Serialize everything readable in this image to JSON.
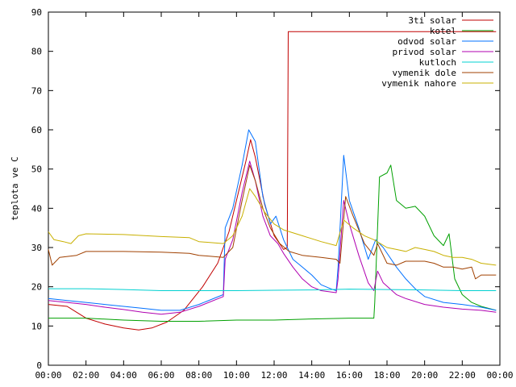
{
  "chart_data": {
    "type": "line",
    "title": "",
    "xlabel": "",
    "ylabel": "teplota ve C",
    "xlim": [
      0,
      24
    ],
    "ylim": [
      0,
      90
    ],
    "yticks": [
      0,
      10,
      20,
      30,
      40,
      50,
      60,
      70,
      80,
      90
    ],
    "xticks": [
      0,
      2,
      4,
      6,
      8,
      10,
      12,
      14,
      16,
      18,
      20,
      22,
      24
    ],
    "xtick_labels": [
      "00:00",
      "02:00",
      "04:00",
      "06:00",
      "08:00",
      "10:00",
      "12:00",
      "14:00",
      "16:00",
      "18:00",
      "20:00",
      "22:00",
      "00:00"
    ],
    "grid": false,
    "legend_position": "top-right",
    "series": [
      {
        "name": "3ti solar",
        "color": "#c00000",
        "points": [
          [
            0,
            15.5
          ],
          [
            1,
            15
          ],
          [
            2,
            12
          ],
          [
            3,
            10.5
          ],
          [
            4,
            9.5
          ],
          [
            4.8,
            9
          ],
          [
            5.5,
            9.5
          ],
          [
            6.3,
            11
          ],
          [
            7.2,
            14
          ],
          [
            8.2,
            20
          ],
          [
            9.0,
            26
          ],
          [
            9.3,
            30
          ],
          [
            9.6,
            34
          ],
          [
            10,
            42
          ],
          [
            10.5,
            52
          ],
          [
            10.75,
            57.5
          ],
          [
            11,
            53
          ],
          [
            11.5,
            41
          ],
          [
            12,
            33
          ],
          [
            12.5,
            29.5
          ],
          [
            12.7,
            30
          ],
          [
            12.75,
            85
          ],
          [
            14,
            85
          ],
          [
            16,
            85
          ],
          [
            18,
            85
          ],
          [
            20,
            85
          ],
          [
            22,
            85
          ],
          [
            23.8,
            85
          ]
        ]
      },
      {
        "name": "kotel",
        "color": "#00a000",
        "points": [
          [
            0,
            12
          ],
          [
            1,
            12
          ],
          [
            2,
            12
          ],
          [
            4,
            11.5
          ],
          [
            6,
            11.2
          ],
          [
            8,
            11.2
          ],
          [
            10,
            11.5
          ],
          [
            12,
            11.5
          ],
          [
            14,
            11.8
          ],
          [
            16,
            12
          ],
          [
            17.3,
            12
          ],
          [
            17.35,
            16
          ],
          [
            17.6,
            48
          ],
          [
            18,
            49
          ],
          [
            18.2,
            51
          ],
          [
            18.5,
            42
          ],
          [
            19,
            40
          ],
          [
            19.5,
            40.5
          ],
          [
            20,
            38
          ],
          [
            20.5,
            33
          ],
          [
            21,
            30.5
          ],
          [
            21.3,
            33.5
          ],
          [
            21.6,
            22
          ],
          [
            22,
            18
          ],
          [
            22.5,
            16
          ],
          [
            23,
            15
          ],
          [
            23.8,
            14
          ]
        ]
      },
      {
        "name": "odvod solar",
        "color": "#0070ff",
        "points": [
          [
            0,
            17
          ],
          [
            1,
            16.5
          ],
          [
            2,
            16
          ],
          [
            3,
            15.5
          ],
          [
            4,
            15
          ],
          [
            5,
            14.5
          ],
          [
            6,
            14
          ],
          [
            7,
            14
          ],
          [
            8,
            15.5
          ],
          [
            9.3,
            18
          ],
          [
            9.4,
            35
          ],
          [
            9.8,
            40
          ],
          [
            10.3,
            51
          ],
          [
            10.65,
            60
          ],
          [
            11,
            57
          ],
          [
            11.4,
            43
          ],
          [
            11.8,
            36
          ],
          [
            12.1,
            38
          ],
          [
            12.5,
            32
          ],
          [
            13,
            27
          ],
          [
            13.5,
            25
          ],
          [
            14,
            23
          ],
          [
            14.5,
            20.5
          ],
          [
            15,
            19.5
          ],
          [
            15.3,
            19
          ],
          [
            15.4,
            25
          ],
          [
            15.7,
            53.5
          ],
          [
            16,
            42
          ],
          [
            16.5,
            35
          ],
          [
            17,
            27
          ],
          [
            17.4,
            32
          ],
          [
            17.8,
            30
          ],
          [
            18.5,
            25
          ],
          [
            19,
            22
          ],
          [
            19.5,
            19.5
          ],
          [
            20,
            17.5
          ],
          [
            21,
            16
          ],
          [
            22,
            15.5
          ],
          [
            23,
            14.8
          ],
          [
            23.8,
            14
          ]
        ]
      },
      {
        "name": "privod solar",
        "color": "#b000b0",
        "points": [
          [
            0,
            16.5
          ],
          [
            1,
            16
          ],
          [
            2,
            15.5
          ],
          [
            3,
            14.8
          ],
          [
            4,
            14.2
          ],
          [
            5,
            13.5
          ],
          [
            6,
            13
          ],
          [
            7,
            13.5
          ],
          [
            8,
            15
          ],
          [
            9.3,
            17.5
          ],
          [
            9.4,
            27
          ],
          [
            9.8,
            32
          ],
          [
            10.3,
            44
          ],
          [
            10.7,
            52
          ],
          [
            11,
            47
          ],
          [
            11.4,
            38
          ],
          [
            11.8,
            33
          ],
          [
            12.2,
            31
          ],
          [
            12.5,
            28.5
          ],
          [
            13,
            25
          ],
          [
            13.5,
            22
          ],
          [
            14,
            20
          ],
          [
            14.5,
            19
          ],
          [
            15.3,
            18.5
          ],
          [
            15.4,
            22
          ],
          [
            15.7,
            42
          ],
          [
            16,
            36
          ],
          [
            16.5,
            28
          ],
          [
            17,
            21
          ],
          [
            17.3,
            19
          ],
          [
            17.5,
            24
          ],
          [
            17.8,
            21
          ],
          [
            18.5,
            18
          ],
          [
            19,
            17
          ],
          [
            20,
            15.5
          ],
          [
            21,
            14.8
          ],
          [
            22,
            14.3
          ],
          [
            23,
            14
          ],
          [
            23.8,
            13.5
          ]
        ]
      },
      {
        "name": "kutloch",
        "color": "#00d0d0",
        "points": [
          [
            0,
            19.5
          ],
          [
            2,
            19.5
          ],
          [
            4,
            19.3
          ],
          [
            6,
            19
          ],
          [
            8,
            19
          ],
          [
            10,
            19
          ],
          [
            12,
            19.1
          ],
          [
            14,
            19.2
          ],
          [
            16,
            19.4
          ],
          [
            18,
            19.3
          ],
          [
            20,
            19.2
          ],
          [
            22,
            19
          ],
          [
            23.8,
            19
          ]
        ]
      },
      {
        "name": "vymenik dole",
        "color": "#a04000",
        "points": [
          [
            0,
            29.5
          ],
          [
            0.2,
            25.5
          ],
          [
            0.6,
            27.5
          ],
          [
            1.5,
            28
          ],
          [
            2,
            29
          ],
          [
            4,
            29
          ],
          [
            6,
            28.8
          ],
          [
            7.5,
            28.5
          ],
          [
            8,
            28
          ],
          [
            9.3,
            27.5
          ],
          [
            9.8,
            30
          ],
          [
            10.3,
            42
          ],
          [
            10.7,
            51
          ],
          [
            11,
            47
          ],
          [
            11.4,
            40
          ],
          [
            11.8,
            35
          ],
          [
            12.3,
            31
          ],
          [
            12.8,
            29
          ],
          [
            13.5,
            28
          ],
          [
            14.5,
            27.5
          ],
          [
            15.3,
            27
          ],
          [
            15.5,
            26
          ],
          [
            15.8,
            43
          ],
          [
            16.2,
            38
          ],
          [
            16.8,
            31
          ],
          [
            17.3,
            28
          ],
          [
            17.5,
            31
          ],
          [
            18,
            26
          ],
          [
            18.5,
            25.5
          ],
          [
            19,
            26.5
          ],
          [
            20,
            26.5
          ],
          [
            20.5,
            26
          ],
          [
            21,
            25
          ],
          [
            21.5,
            25
          ],
          [
            22,
            24.5
          ],
          [
            22.5,
            25
          ],
          [
            22.7,
            22
          ],
          [
            23,
            23
          ],
          [
            23.8,
            23
          ]
        ]
      },
      {
        "name": "vymenik nahore",
        "color": "#c8b000",
        "points": [
          [
            0,
            34
          ],
          [
            0.3,
            32
          ],
          [
            0.8,
            31.5
          ],
          [
            1.2,
            31
          ],
          [
            1.6,
            33
          ],
          [
            2,
            33.5
          ],
          [
            4,
            33.3
          ],
          [
            6,
            32.8
          ],
          [
            7.5,
            32.5
          ],
          [
            8,
            31.5
          ],
          [
            9.3,
            31
          ],
          [
            9.8,
            33
          ],
          [
            10.3,
            38
          ],
          [
            10.7,
            45
          ],
          [
            11,
            43
          ],
          [
            11.5,
            39
          ],
          [
            12,
            36
          ],
          [
            12.5,
            34.5
          ],
          [
            13.5,
            33
          ],
          [
            14.5,
            31.5
          ],
          [
            15.3,
            30.5
          ],
          [
            15.7,
            37
          ],
          [
            16.2,
            35
          ],
          [
            16.8,
            33
          ],
          [
            17.3,
            32
          ],
          [
            18,
            30
          ],
          [
            18.5,
            29.5
          ],
          [
            19,
            29
          ],
          [
            19.5,
            30
          ],
          [
            20,
            29.5
          ],
          [
            20.5,
            29
          ],
          [
            21,
            28
          ],
          [
            21.5,
            27.5
          ],
          [
            22,
            27.5
          ],
          [
            22.5,
            27
          ],
          [
            23,
            26
          ],
          [
            23.8,
            25.5
          ]
        ]
      }
    ]
  }
}
